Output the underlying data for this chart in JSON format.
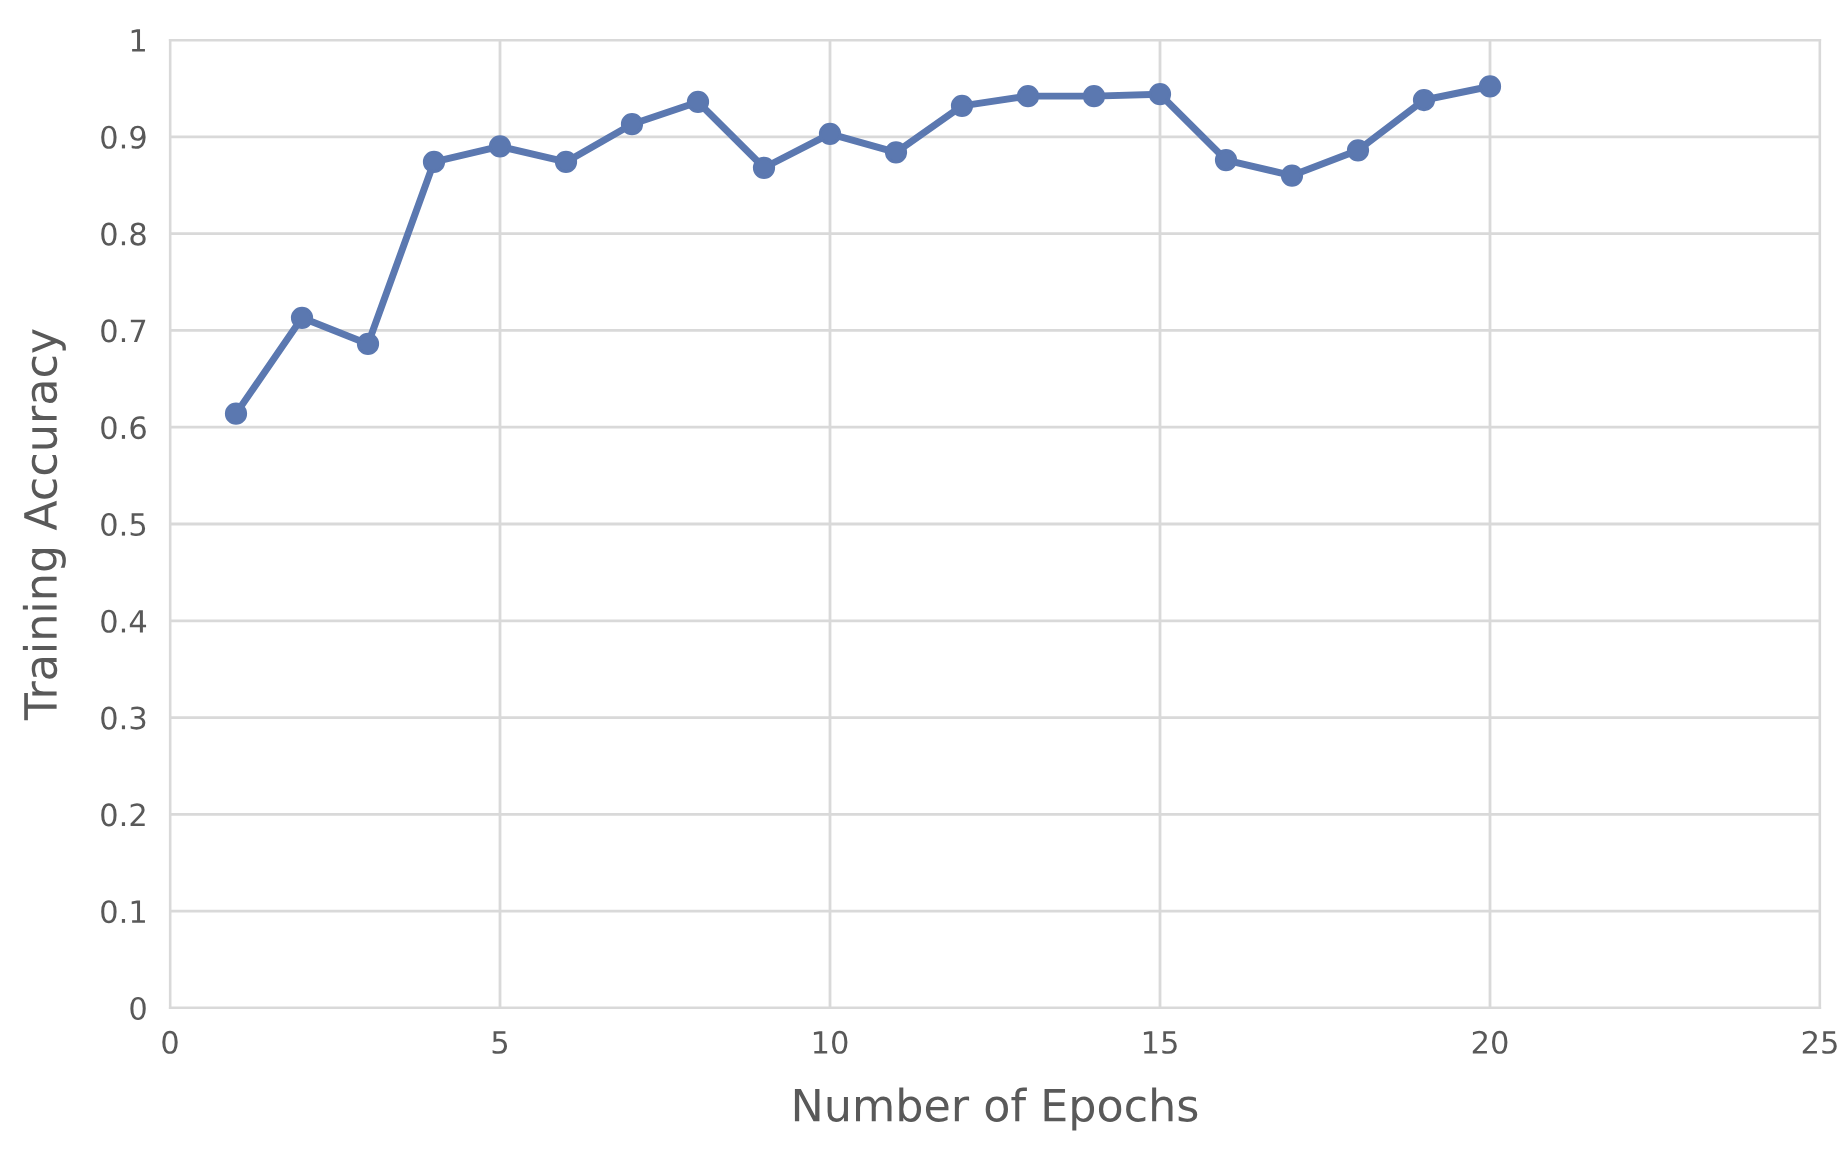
{
  "chart_data": {
    "type": "line",
    "xlabel": "Number of Epochs",
    "ylabel": "Training Accuracy",
    "x": [
      1,
      2,
      3,
      4,
      5,
      6,
      7,
      8,
      9,
      10,
      11,
      12,
      13,
      14,
      15,
      16,
      17,
      18,
      19,
      20
    ],
    "series": [
      {
        "color": "#5b78b0",
        "values": [
          0.614,
          0.713,
          0.686,
          0.874,
          0.89,
          0.874,
          0.913,
          0.936,
          0.868,
          0.903,
          0.884,
          0.932,
          0.942,
          0.942,
          0.944,
          0.876,
          0.86,
          0.886,
          0.938,
          0.952
        ]
      }
    ],
    "xlim": [
      0,
      25
    ],
    "xticks": [
      0,
      5,
      10,
      15,
      20,
      25
    ],
    "ylim": [
      0,
      1
    ],
    "yticks": [
      0,
      0.1,
      0.2,
      0.3,
      0.4,
      0.5,
      0.6,
      0.7,
      0.8,
      0.9,
      1
    ],
    "grid": true,
    "marker": "circle",
    "line_style": "solid"
  }
}
